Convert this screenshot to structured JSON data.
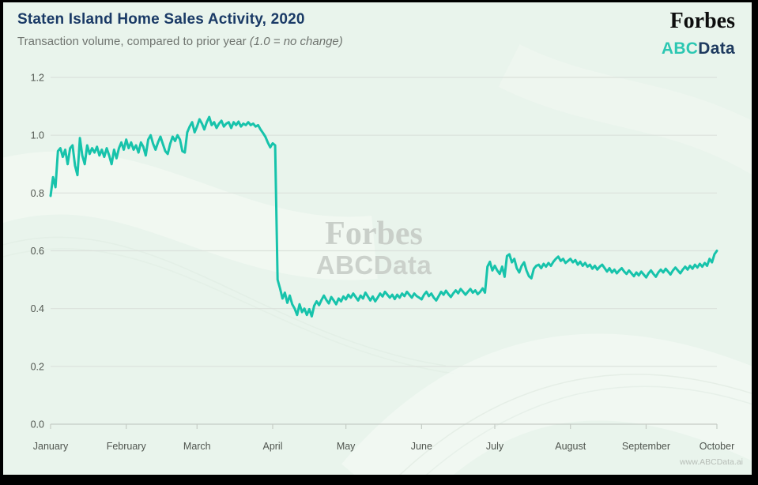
{
  "header": {
    "title": "Staten Island Home Sales Activity, 2020",
    "subtitle_plain": "Transaction volume, compared to prior year ",
    "subtitle_italic": "(1.0 = no change)"
  },
  "brand": {
    "forbes": "Forbes",
    "abc": "ABC",
    "data_word": "Data"
  },
  "watermark": {
    "line1": "Forbes",
    "line2": "ABCData"
  },
  "footer": {
    "credit": "www.ABCData.ai"
  },
  "colors": {
    "line": "#17c3ab",
    "title_navy": "#1a3a66",
    "brand_teal": "#2cc7b2",
    "brand_navy": "#1e3a5f",
    "background": "#e9f4ec",
    "grid": "#dbe1db",
    "axis": "#c5ccc5",
    "tick_label": "#50554f",
    "watermark_gray": "#c9cfc9"
  },
  "chart_data": {
    "type": "line",
    "title": "Staten Island Home Sales Activity, 2020",
    "subtitle": "Transaction volume, compared to prior year (1.0 = no change)",
    "x_unit": "day of year 2020 (Jan 1 = 0, Oct 1 = 273)",
    "categories": [
      "January",
      "February",
      "March",
      "April",
      "May",
      "June",
      "July",
      "August",
      "September",
      "October"
    ],
    "month_start_days": [
      0,
      31,
      60,
      91,
      121,
      152,
      182,
      213,
      244,
      273
    ],
    "y_ticks": [
      0.0,
      0.2,
      0.4,
      0.6,
      0.8,
      1.0,
      1.2
    ],
    "ylim": [
      0.0,
      1.2
    ],
    "grid": "horizontal",
    "legend": "none",
    "series": [
      {
        "name": "Transaction volume vs prior year",
        "color": "#17c3ab",
        "values": [
          0.79,
          0.855,
          0.82,
          0.945,
          0.955,
          0.925,
          0.95,
          0.9,
          0.955,
          0.965,
          0.895,
          0.862,
          0.99,
          0.93,
          0.9,
          0.965,
          0.935,
          0.955,
          0.94,
          0.96,
          0.93,
          0.95,
          0.925,
          0.955,
          0.93,
          0.9,
          0.95,
          0.92,
          0.955,
          0.975,
          0.95,
          0.985,
          0.955,
          0.975,
          0.95,
          0.965,
          0.94,
          0.975,
          0.96,
          0.93,
          0.985,
          1.0,
          0.97,
          0.95,
          0.975,
          0.995,
          0.97,
          0.945,
          0.935,
          0.97,
          0.995,
          0.98,
          1.0,
          0.985,
          0.945,
          0.94,
          1.01,
          1.03,
          1.045,
          1.01,
          1.03,
          1.055,
          1.04,
          1.02,
          1.045,
          1.063,
          1.035,
          1.045,
          1.025,
          1.04,
          1.05,
          1.03,
          1.04,
          1.045,
          1.025,
          1.045,
          1.035,
          1.047,
          1.03,
          1.04,
          1.035,
          1.045,
          1.035,
          1.04,
          1.03,
          1.035,
          1.02,
          1.008,
          0.995,
          0.975,
          0.958,
          0.972,
          0.965,
          0.5,
          0.47,
          0.435,
          0.455,
          0.42,
          0.445,
          0.415,
          0.4,
          0.378,
          0.415,
          0.388,
          0.4,
          0.378,
          0.398,
          0.373,
          0.41,
          0.425,
          0.412,
          0.43,
          0.445,
          0.43,
          0.418,
          0.44,
          0.428,
          0.415,
          0.435,
          0.425,
          0.442,
          0.432,
          0.448,
          0.438,
          0.452,
          0.44,
          0.428,
          0.445,
          0.435,
          0.455,
          0.442,
          0.428,
          0.442,
          0.425,
          0.438,
          0.452,
          0.442,
          0.458,
          0.448,
          0.438,
          0.448,
          0.433,
          0.448,
          0.438,
          0.452,
          0.443,
          0.458,
          0.448,
          0.438,
          0.452,
          0.443,
          0.438,
          0.432,
          0.448,
          0.458,
          0.443,
          0.452,
          0.438,
          0.428,
          0.443,
          0.458,
          0.448,
          0.462,
          0.45,
          0.44,
          0.453,
          0.463,
          0.453,
          0.468,
          0.458,
          0.448,
          0.458,
          0.468,
          0.455,
          0.463,
          0.45,
          0.458,
          0.47,
          0.455,
          0.545,
          0.562,
          0.532,
          0.548,
          0.532,
          0.52,
          0.545,
          0.51,
          0.582,
          0.588,
          0.56,
          0.572,
          0.54,
          0.525,
          0.548,
          0.56,
          0.532,
          0.512,
          0.505,
          0.538,
          0.548,
          0.552,
          0.54,
          0.555,
          0.545,
          0.558,
          0.548,
          0.562,
          0.572,
          0.58,
          0.565,
          0.572,
          0.558,
          0.565,
          0.572,
          0.56,
          0.568,
          0.552,
          0.562,
          0.548,
          0.558,
          0.545,
          0.552,
          0.538,
          0.548,
          0.535,
          0.545,
          0.552,
          0.54,
          0.528,
          0.54,
          0.525,
          0.535,
          0.522,
          0.532,
          0.54,
          0.528,
          0.52,
          0.532,
          0.522,
          0.512,
          0.525,
          0.515,
          0.528,
          0.518,
          0.508,
          0.522,
          0.532,
          0.52,
          0.51,
          0.525,
          0.535,
          0.525,
          0.538,
          0.528,
          0.518,
          0.532,
          0.542,
          0.532,
          0.522,
          0.535,
          0.545,
          0.535,
          0.548,
          0.538,
          0.552,
          0.542,
          0.555,
          0.545,
          0.558,
          0.548,
          0.572,
          0.56,
          0.588,
          0.6
        ]
      }
    ]
  }
}
